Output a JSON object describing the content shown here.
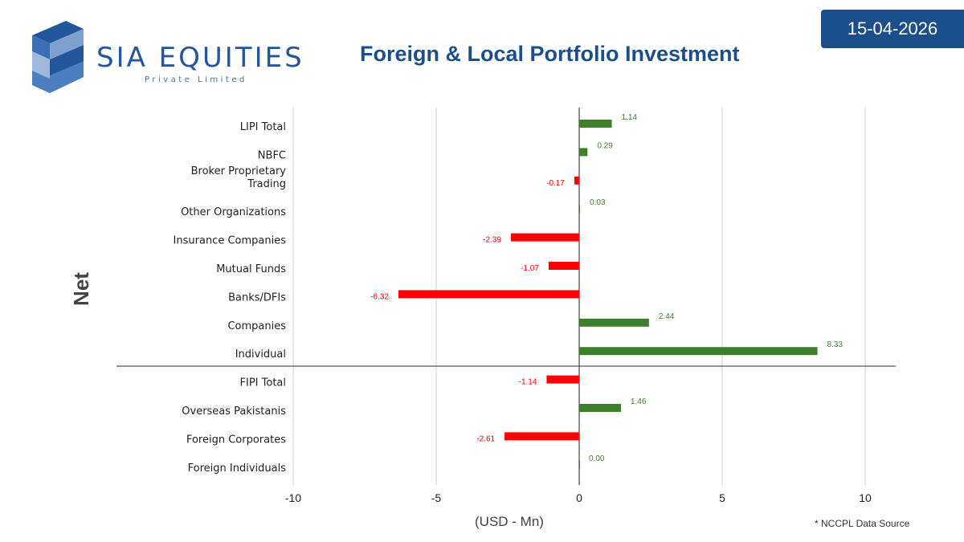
{
  "header": {
    "date": "15-04-2026",
    "title": "Foreign & Local Portfolio Investment",
    "logo_name": "SIA EQUITIES",
    "logo_subtitle": "Private Limited"
  },
  "footer": {
    "source_note": "* NCCPL Data Source"
  },
  "colors": {
    "positive": "#3d7f2a",
    "negative": "#ff0000",
    "brand": "#1a4f8b"
  },
  "chart_data": {
    "type": "bar",
    "orientation": "horizontal",
    "categories": [
      "LIPI Total",
      "NBFC",
      "Broker Proprietary Trading",
      "Other Organizations",
      "Insurance Companies",
      "Mutual Funds",
      "Banks/DFIs",
      "Companies",
      "Individual",
      "FIPI Total",
      "Overseas Pakistanis",
      "Foreign Corporates",
      "Foreign Individuals"
    ],
    "values": [
      1.14,
      0.29,
      -0.17,
      0.03,
      -2.39,
      -1.07,
      -6.32,
      2.44,
      8.33,
      -1.14,
      1.46,
      -2.61,
      0.0
    ],
    "value_labels": [
      "1.14",
      "0.29",
      "-0.17",
      "0.03",
      "-2.39",
      "-1.07",
      "-6.32",
      "2.44",
      "8.33",
      "-1.14",
      "1.46",
      "-2.61",
      "0.00"
    ],
    "xlabel": "(USD - Mn)",
    "ylabel": "Net",
    "xlim": [
      -10,
      10
    ],
    "xticks": [
      -10,
      -5,
      0,
      5,
      10
    ],
    "grid": true,
    "legend": "none"
  }
}
